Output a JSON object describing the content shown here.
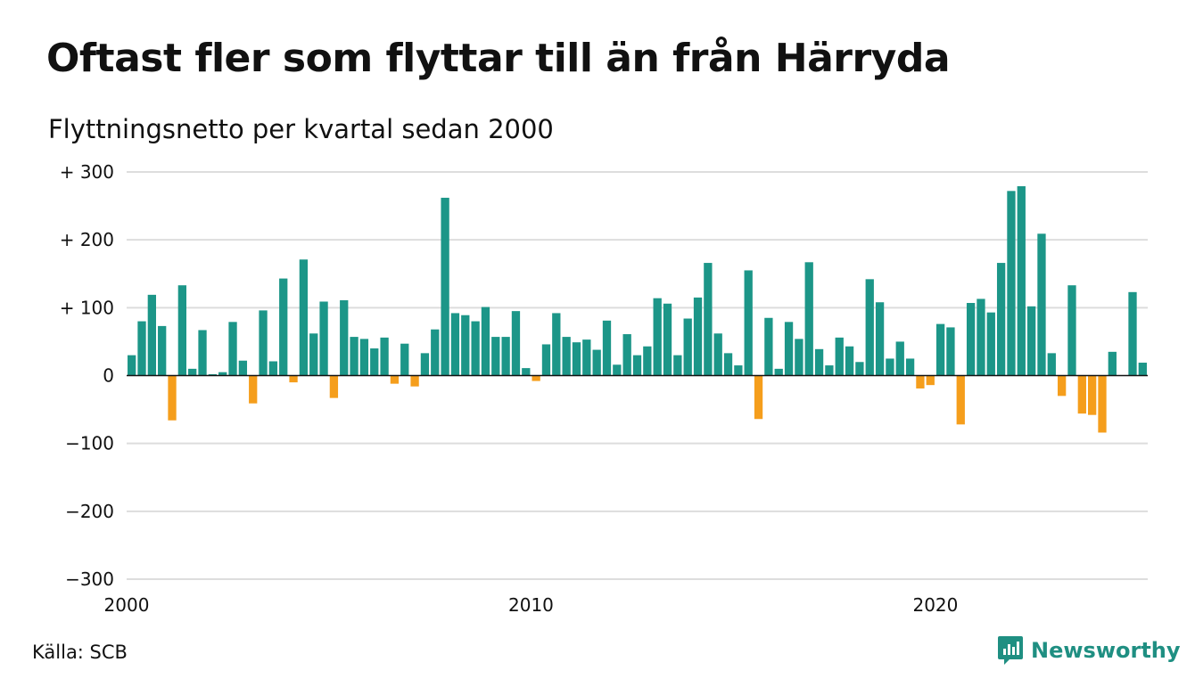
{
  "header": {
    "title": "Oftast fler som flyttar till än från Härryda",
    "subtitle": "Flyttningsnetto per kvartal sedan 2000"
  },
  "footer": {
    "source": "Källa: SCB",
    "brand": "Newsworthy",
    "brand_icon": "newsworthy-logo-icon"
  },
  "chart_data": {
    "type": "bar",
    "title": "Oftast fler som flyttar till än från Härryda",
    "subtitle": "Flyttningsnetto per kvartal sedan 2000",
    "xlabel": "",
    "ylabel": "",
    "ylim": [
      -300,
      300
    ],
    "xlim": [
      2000,
      2025.25
    ],
    "grid": true,
    "legend": "none",
    "y_ticks": [
      {
        "value": 300,
        "label": "+ 300"
      },
      {
        "value": 200,
        "label": "+ 200"
      },
      {
        "value": 100,
        "label": "+ 100"
      },
      {
        "value": 0,
        "label": "0"
      },
      {
        "value": -100,
        "label": "−100"
      },
      {
        "value": -200,
        "label": "−200"
      },
      {
        "value": -300,
        "label": "−300"
      }
    ],
    "x_ticks": [
      {
        "value": 2000,
        "label": "2000"
      },
      {
        "value": 2010,
        "label": "2010"
      },
      {
        "value": 2020,
        "label": "2020"
      }
    ],
    "colors": {
      "positive": "#1c9688",
      "negative": "#f59e1c",
      "grid": "#dddddd",
      "zero_line": "#111111"
    },
    "x_start": "2000 Q1",
    "series": [
      {
        "values": [
          30,
          80,
          119,
          73,
          -66,
          133,
          10,
          67,
          2,
          5,
          79,
          22,
          -41,
          96,
          21,
          143,
          -10,
          171,
          62,
          109,
          -33,
          111,
          57,
          54,
          40,
          56,
          -12,
          47,
          -16,
          33,
          68,
          262,
          92,
          89,
          80,
          101,
          57,
          57,
          95,
          11,
          -8,
          46,
          92,
          57,
          49,
          53,
          38,
          81,
          16,
          61,
          30,
          43,
          114,
          106,
          30,
          84,
          115,
          166,
          62,
          33,
          15,
          155,
          -64,
          85,
          10,
          79,
          54,
          167,
          39,
          15,
          56,
          43,
          20,
          142,
          108,
          25,
          50,
          25,
          -19,
          -14,
          76,
          71,
          -72,
          107,
          113,
          93,
          166,
          272,
          279,
          102,
          209,
          33,
          -30,
          133,
          -56,
          -58,
          -84,
          35,
          0,
          123,
          19
        ]
      }
    ]
  }
}
